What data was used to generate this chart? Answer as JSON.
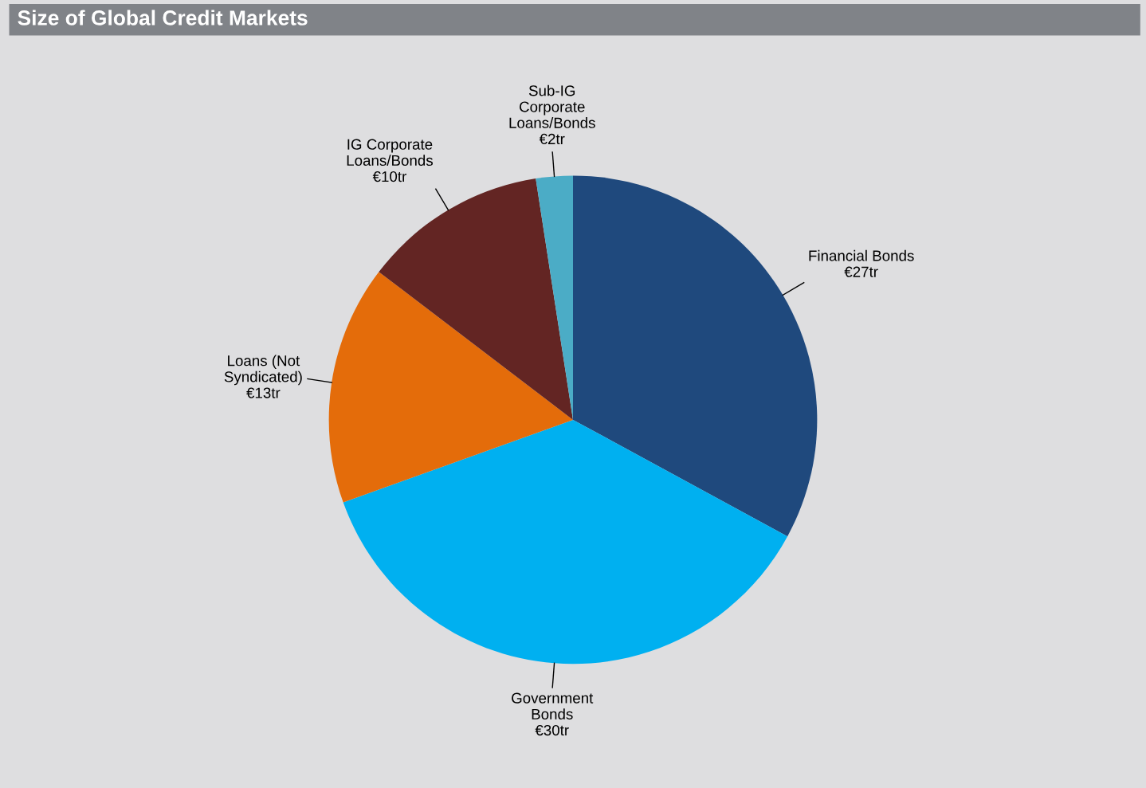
{
  "chart_data": {
    "type": "pie",
    "title": "Size of Global Credit Markets",
    "categories": [
      "Financial Bonds",
      "Government\nBonds",
      "Loans (Not\nSyndicated)",
      "IG Corporate\nLoans/Bonds",
      "Sub-IG\nCorporate\nLoans/Bonds"
    ],
    "values": [
      27,
      30,
      13,
      10,
      2
    ],
    "colors": [
      "#1f497d",
      "#00b0f0",
      "#e46c0a",
      "#632523",
      "#4bacc6"
    ],
    "value_labels": [
      "€27tr",
      "€30tr",
      "€13tr",
      "€10tr",
      "€2tr"
    ]
  }
}
